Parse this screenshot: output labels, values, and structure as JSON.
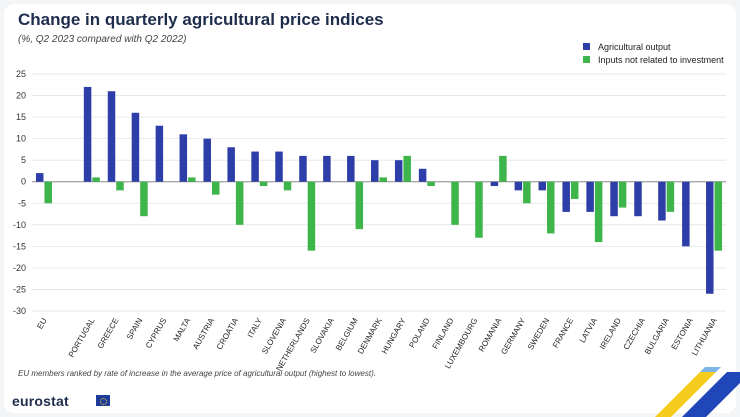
{
  "chart_data": {
    "type": "bar",
    "title": "Change in quarterly agricultural price indices",
    "subtitle": "(%, Q2 2023 compared with Q2 2022)",
    "ylim": [
      -30,
      25
    ],
    "yticks": [
      25,
      20,
      15,
      10,
      5,
      0,
      -5,
      -10,
      -15,
      -20,
      -25,
      -30
    ],
    "categories": [
      "EU",
      "",
      "PORTUGAL",
      "GREECE",
      "SPAIN",
      "CYPRUS",
      "MALTA",
      "AUSTRIA",
      "CROATIA",
      "ITALY",
      "SLOVENIA",
      "NETHERLANDS",
      "SLOVAKIA",
      "BELGIUM",
      "DENMARK",
      "HUNGARY",
      "POLAND",
      "FINLAND",
      "LUXEMBOURG",
      "ROMANIA",
      "GERMANY",
      "SWEDEN",
      "FRANCE",
      "LATVIA",
      "IRELAND",
      "CZECHIA",
      "BULGARIA",
      "ESTONIA",
      "LITHUANIA"
    ],
    "series": [
      {
        "name": "Agricultural output",
        "color": "#2e3ea8",
        "values": [
          2,
          null,
          22,
          21,
          16,
          13,
          11,
          10,
          8,
          7,
          7,
          6,
          6,
          6,
          5,
          5,
          3,
          0,
          0,
          -1,
          -2,
          -2,
          -7,
          -7,
          -8,
          -8,
          -9,
          -15,
          -26
        ]
      },
      {
        "name": "Inputs not related to investment",
        "color": "#3db54a",
        "values": [
          -5,
          null,
          1,
          -2,
          -8,
          0,
          1,
          -3,
          -10,
          -1,
          -2,
          -16,
          0,
          -11,
          1,
          6,
          -1,
          -10,
          -13,
          6,
          -5,
          -12,
          -4,
          -14,
          -6,
          0,
          -7,
          0,
          -16
        ]
      }
    ],
    "footnote": "EU members ranked by rate of increase in the average price of agricultural output (highest to lowest).",
    "legend_position": "top-right"
  },
  "branding": {
    "name": "eurostat"
  }
}
